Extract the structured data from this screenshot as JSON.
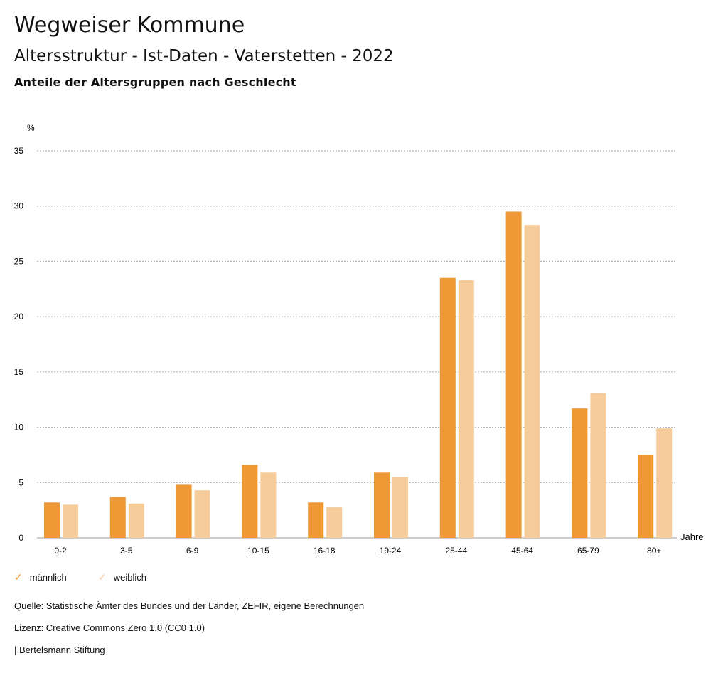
{
  "header": {
    "title": "Wegweiser Kommune",
    "subtitle": "Altersstruktur - Ist-Daten - Vaterstetten - 2022",
    "chart_title": "Anteile der Altersgruppen nach Geschlecht"
  },
  "chart_data": {
    "type": "bar",
    "title": "Anteile der Altersgruppen nach Geschlecht",
    "ylabel": "%",
    "xlabel": "Jahre",
    "ylim": [
      0,
      35
    ],
    "yticks": [
      0,
      5,
      10,
      15,
      20,
      25,
      30,
      35
    ],
    "grid": true,
    "legend": "bottom-left",
    "categories": [
      "0-2",
      "3-5",
      "6-9",
      "10-15",
      "16-18",
      "19-24",
      "25-44",
      "45-64",
      "65-79",
      "80+"
    ],
    "series": [
      {
        "name": "männlich",
        "color": "#EE9936",
        "values": [
          3.2,
          3.7,
          4.8,
          6.6,
          3.2,
          5.9,
          23.5,
          29.5,
          11.7,
          7.5
        ]
      },
      {
        "name": "weiblich",
        "color": "#F5CC9A",
        "values": [
          3.0,
          3.1,
          4.3,
          5.9,
          2.8,
          5.5,
          23.3,
          28.3,
          13.1,
          9.9
        ]
      }
    ]
  },
  "footer": {
    "source": "Quelle: Statistische Ämter des Bundes und der Länder, ZEFIR, eigene Berechnungen",
    "license": "Lizenz: Creative Commons Zero 1.0 (CC0 1.0)",
    "brand": "| Bertelsmann Stiftung"
  }
}
